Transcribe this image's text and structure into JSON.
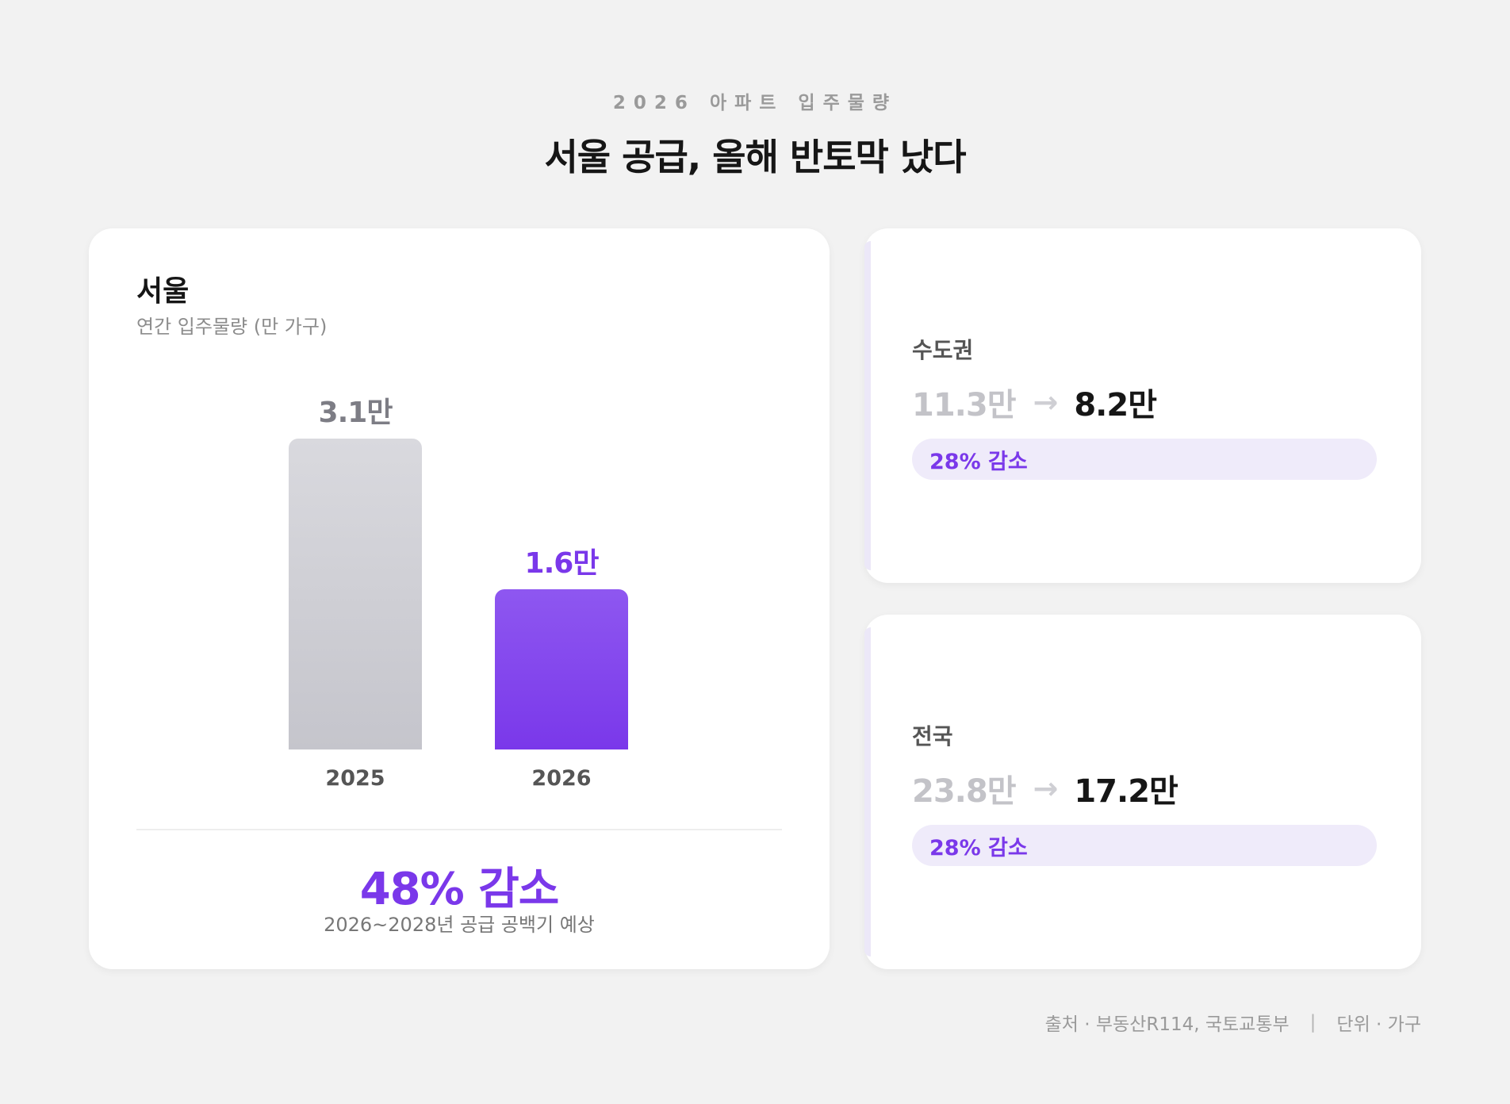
{
  "header": {
    "kicker": "2026 아파트 입주물량",
    "title": "서울 공급, 올해 반토막 났다"
  },
  "main_card": {
    "region": "서울",
    "subtitle": "연간 입주물량 (만 가구)",
    "change_label": "48% 감소",
    "note": "2026~2028년 공급 공백기 예상"
  },
  "chart_data": {
    "type": "bar",
    "title": "서울",
    "ylabel": "연간 입주물량 (만 가구)",
    "categories": [
      "2025",
      "2026"
    ],
    "values": [
      3.1,
      1.6
    ],
    "data_labels": [
      "3.1만",
      "1.6만"
    ],
    "colors": [
      "#cfcfd6",
      "#7c3aed"
    ],
    "ylim": [
      0,
      3.1
    ],
    "grid": false
  },
  "side_cards": [
    {
      "region": "수도권",
      "from": "11.3만",
      "to": "8.2만",
      "change": "28% 감소"
    },
    {
      "region": "전국",
      "from": "23.8만",
      "to": "17.2만",
      "change": "28% 감소"
    }
  ],
  "arrow_icon": "arrow-right-icon",
  "footer": {
    "source": "출처 · 부동산R114, 국토교통부",
    "separator": "|",
    "unit": "단위 · 가구"
  },
  "colors": {
    "accent": "#7c3aed",
    "muted_bar": "#cfcfd6",
    "background": "#f2f2f2"
  }
}
